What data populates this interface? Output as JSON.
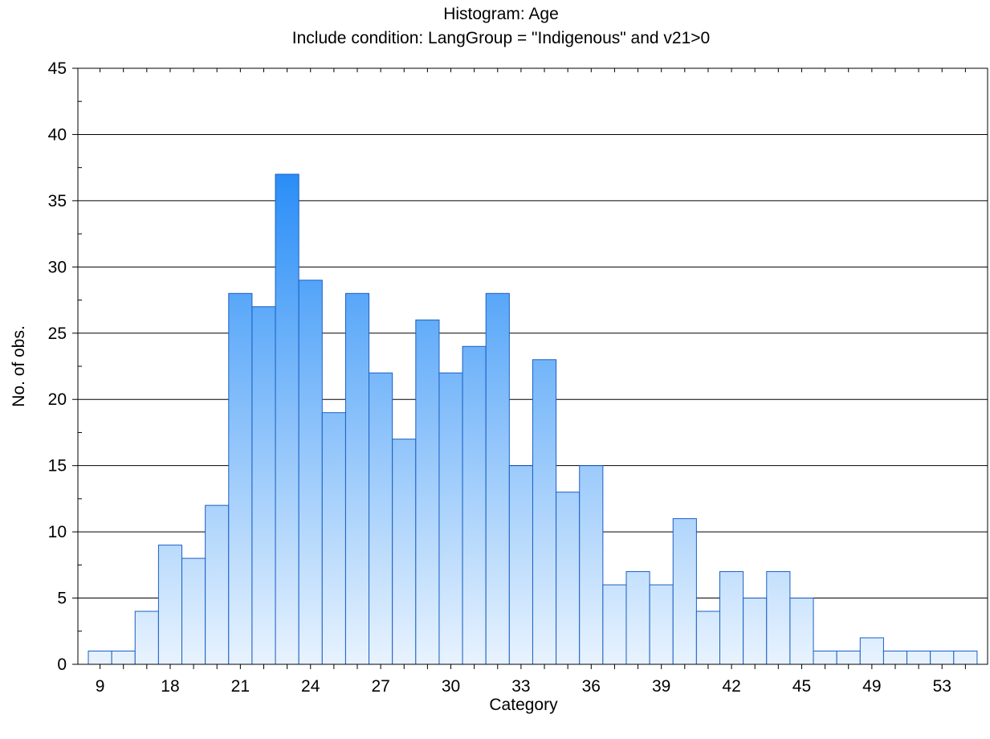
{
  "chart_data": {
    "type": "bar",
    "title": "Histogram: Age",
    "subtitle": "Include condition: LangGroup = \"Indigenous\" and v21>0",
    "xlabel": "Category",
    "ylabel": "No. of obs.",
    "ylim": [
      0,
      45
    ],
    "yticks": [
      0,
      5,
      10,
      15,
      20,
      25,
      30,
      35,
      40,
      45
    ],
    "xtick_labels": [
      {
        "bar_index": 0,
        "label": "9"
      },
      {
        "bar_index": 3,
        "label": "18"
      },
      {
        "bar_index": 6,
        "label": "21"
      },
      {
        "bar_index": 9,
        "label": "24"
      },
      {
        "bar_index": 12,
        "label": "27"
      },
      {
        "bar_index": 15,
        "label": "30"
      },
      {
        "bar_index": 18,
        "label": "33"
      },
      {
        "bar_index": 21,
        "label": "36"
      },
      {
        "bar_index": 24,
        "label": "39"
      },
      {
        "bar_index": 27,
        "label": "42"
      },
      {
        "bar_index": 30,
        "label": "45"
      },
      {
        "bar_index": 33,
        "label": "49"
      },
      {
        "bar_index": 36,
        "label": "53"
      }
    ],
    "values": [
      1,
      1,
      4,
      9,
      8,
      12,
      28,
      27,
      37,
      29,
      19,
      28,
      22,
      17,
      26,
      22,
      24,
      28,
      15,
      23,
      13,
      15,
      6,
      7,
      6,
      11,
      4,
      7,
      5,
      7,
      5,
      1,
      1,
      2,
      1,
      1,
      1,
      1
    ],
    "grid": "horizontal",
    "colors": {
      "bar_top_max": "#2a8ef7",
      "bar_bottom": "#e8f3fe",
      "bar_stroke": "#1a5fc4",
      "axis": "#000000",
      "grid": "#000000"
    }
  }
}
